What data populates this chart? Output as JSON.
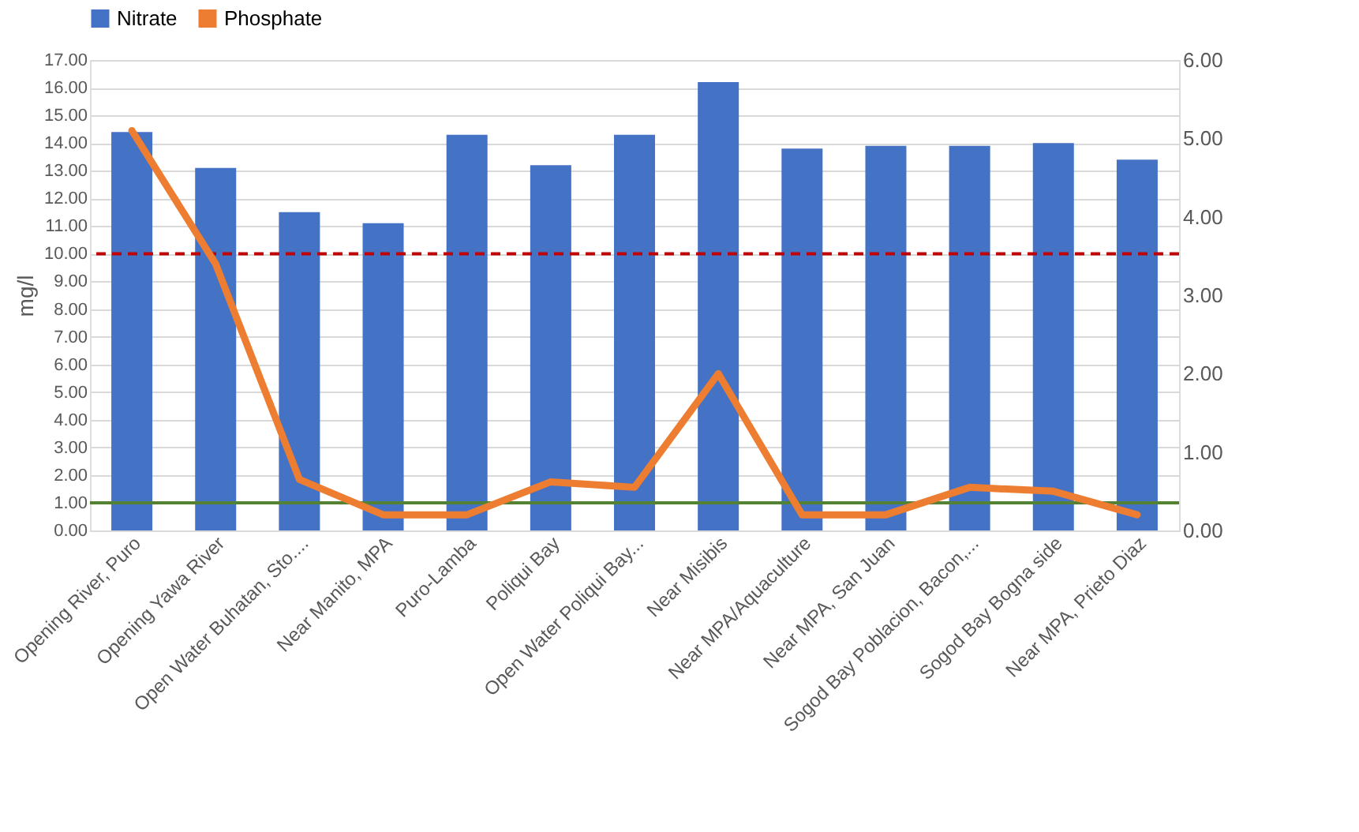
{
  "chart_data": {
    "type": "bar",
    "ylabel": "mg/l",
    "categories": [
      "Opening River, Puro",
      "Opening Yawa River",
      "Open Water Buhatan, Sto....",
      "Near Manito, MPA",
      "Puro-Lamba",
      "Poliqui Bay",
      "Open Water Poliqui Bay...",
      "Near Misibis",
      "Near MPA/Aquaculture",
      "Near MPA, San Juan",
      "Sogod Bay Poblacion, Bacon,...",
      "Sogod Bay Bogna side",
      "Near MPA, Prieto Diaz"
    ],
    "series": [
      {
        "name": "Nitrate",
        "color": "#4472c4",
        "values": [
          14.4,
          13.1,
          11.5,
          11.1,
          14.3,
          13.2,
          14.3,
          16.2,
          13.8,
          13.9,
          13.9,
          14.0,
          13.4
        ]
      },
      {
        "name": "Phosphate",
        "type": "line",
        "axis": "y2",
        "color": "#ed7d31",
        "values": [
          5.1,
          3.4,
          0.65,
          0.2,
          0.2,
          0.62,
          0.55,
          2.0,
          0.2,
          0.2,
          0.55,
          0.5,
          0.2
        ]
      }
    ],
    "ylim": [
      0,
      17
    ],
    "yticks": [
      {
        "value": 0,
        "label": "0.00"
      },
      {
        "value": 1,
        "label": "1.00"
      },
      {
        "value": 2,
        "label": "2.00"
      },
      {
        "value": 3,
        "label": "3.00"
      },
      {
        "value": 4,
        "label": "4.00"
      },
      {
        "value": 5,
        "label": "5.00"
      },
      {
        "value": 6,
        "label": "6.00"
      },
      {
        "value": 7,
        "label": "7.00"
      },
      {
        "value": 8,
        "label": "8.00"
      },
      {
        "value": 9,
        "label": "9.00"
      },
      {
        "value": 10,
        "label": "10.00"
      },
      {
        "value": 11,
        "label": "11.00"
      },
      {
        "value": 12,
        "label": "12.00"
      },
      {
        "value": 13,
        "label": "13.00"
      },
      {
        "value": 14,
        "label": "14.00"
      },
      {
        "value": 15,
        "label": "15.00"
      },
      {
        "value": 16,
        "label": "16.00"
      },
      {
        "value": 17,
        "label": "17.00"
      }
    ],
    "y2lim": [
      0,
      6
    ],
    "y2ticks": [
      {
        "value": 0,
        "label": "0.00"
      },
      {
        "value": 1,
        "label": "1.00"
      },
      {
        "value": 2,
        "label": "2.00"
      },
      {
        "value": 3,
        "label": "3.00"
      },
      {
        "value": 4,
        "label": "4.00"
      },
      {
        "value": 5,
        "label": "5.00"
      },
      {
        "value": 6,
        "label": "6.00"
      }
    ],
    "ref_lines": [
      {
        "axis": "y",
        "value": 10,
        "color": "#c00000",
        "line_style": "dashed"
      },
      {
        "axis": "y",
        "value": 1,
        "color": "#548235",
        "line_style": "solid"
      }
    ],
    "grid": "y",
    "legend": "top"
  }
}
